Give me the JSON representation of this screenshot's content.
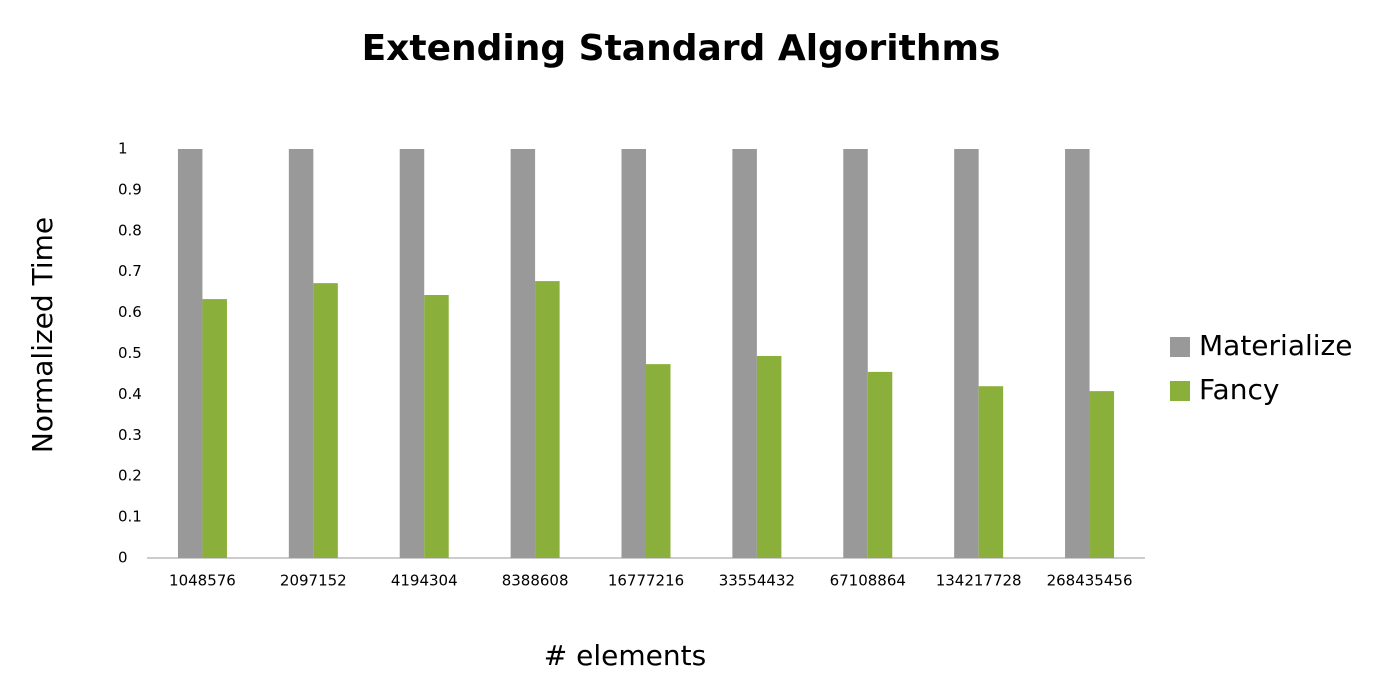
{
  "chart_data": {
    "type": "bar",
    "title": "Extending Standard Algorithms",
    "x_label": "# elements",
    "y_label": "Normalized Time",
    "categories": [
      "1048576",
      "2097152",
      "4194304",
      "8388608",
      "16777216",
      "33554432",
      "67108864",
      "134217728",
      "268435456"
    ],
    "series": [
      {
        "name": "Materialize",
        "color": "#999999",
        "values": [
          1,
          1,
          1,
          1,
          1,
          1,
          1,
          1,
          1
        ]
      },
      {
        "name": "Fancy",
        "color": "#8aaf3a",
        "values": [
          0.633,
          0.672,
          0.643,
          0.677,
          0.474,
          0.494,
          0.455,
          0.42,
          0.408
        ]
      }
    ],
    "ylim": [
      0,
      1
    ],
    "yticks": [
      0,
      0.1,
      0.2,
      0.3,
      0.4,
      0.5,
      0.6,
      0.7,
      0.8,
      0.9,
      1
    ],
    "grid": false,
    "legend": "right"
  }
}
